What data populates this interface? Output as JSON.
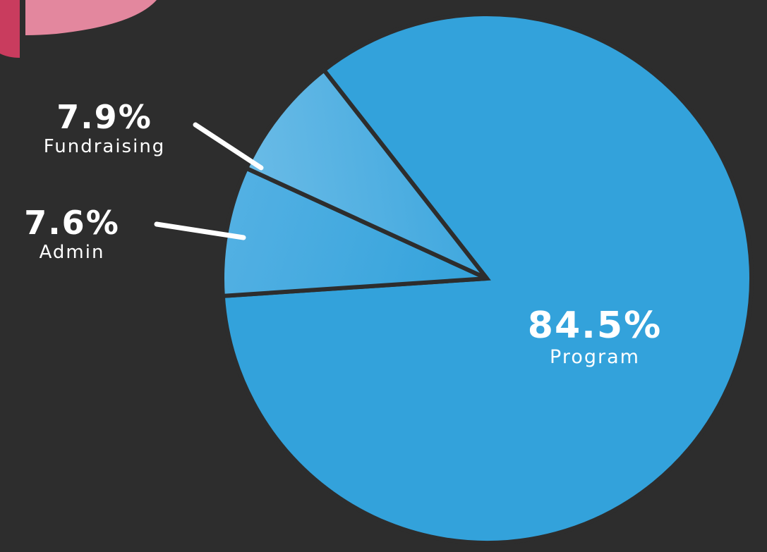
{
  "chart_data": {
    "type": "pie",
    "slices": [
      {
        "label": "Program",
        "value": 84.5,
        "display": "84.5%",
        "color": "#33a2db"
      },
      {
        "label": "Fundraising",
        "value": 7.9,
        "display": "7.9%",
        "color": "#42a9e0"
      },
      {
        "label": "Admin",
        "value": 7.6,
        "display": "7.6%",
        "color": "#5cb5e4"
      }
    ],
    "background": "#2d2d2d",
    "decor_colors": {
      "pink": "#e3879e",
      "red": "#c93c5e"
    }
  }
}
